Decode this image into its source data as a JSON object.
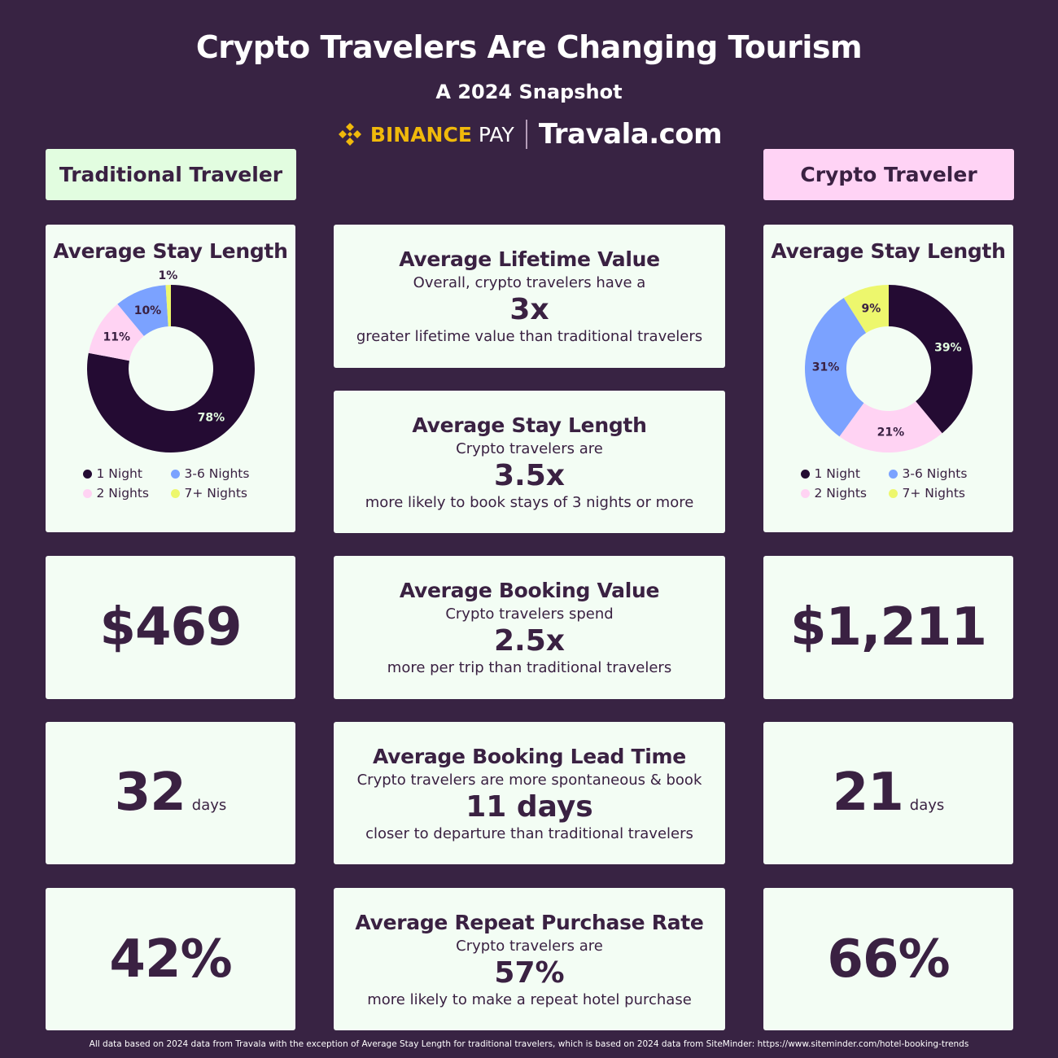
{
  "header": {
    "title": "Crypto Travelers Are Changing Tourism",
    "subtitle": "A 2024 Snapshot",
    "logo_binance": "BINANCE",
    "logo_pay": "PAY",
    "logo_travala": "Travala.com"
  },
  "columns": {
    "traditional": "Traditional Traveler",
    "crypto": "Crypto Traveler"
  },
  "colors": {
    "background": "#382343",
    "card": "#f3fdf4",
    "night1": "#240b33",
    "night2": "#ffd3f3",
    "night3_6": "#7ba2ff",
    "night7": "#edf76d",
    "binance": "#f0b90b"
  },
  "chart_data": [
    {
      "type": "pie",
      "variant": "donut",
      "title": "Average Stay Length",
      "group": "Traditional Traveler",
      "categories": [
        "1 Night",
        "2 Nights",
        "3-6 Nights",
        "7+ Nights"
      ],
      "values": [
        78,
        11,
        10,
        1
      ],
      "labels": [
        "78%",
        "11%",
        "10%",
        "1%"
      ],
      "legend": [
        "1 Night",
        "3-6 Nights",
        "2 Nights",
        "7+ Nights"
      ]
    },
    {
      "type": "pie",
      "variant": "donut",
      "title": "Average Stay Length",
      "group": "Crypto Traveler",
      "categories": [
        "1 Night",
        "2 Nights",
        "3-6 Nights",
        "7+ Nights"
      ],
      "values": [
        39,
        21,
        31,
        9
      ],
      "labels": [
        "39%",
        "21%",
        "31%",
        "9%"
      ],
      "legend": [
        "1 Night",
        "3-6 Nights",
        "2 Nights",
        "7+ Nights"
      ]
    }
  ],
  "middle": [
    {
      "title": "Average Lifetime Value",
      "pre": "Overall, crypto travelers have a",
      "big": "3x",
      "post": "greater lifetime value than traditional travelers"
    },
    {
      "title": "Average Stay Length",
      "pre": "Crypto travelers are",
      "big": "3.5x",
      "post": "more likely to book stays of 3 nights or more"
    },
    {
      "title": "Average Booking Value",
      "pre": "Crypto travelers spend",
      "big": "2.5x",
      "post": "more per trip than traditional travelers"
    },
    {
      "title": "Average Booking Lead Time",
      "pre": "Crypto travelers are more spontaneous & book",
      "big": "11 days",
      "post": "closer to departure than traditional travelers"
    },
    {
      "title": "Average Repeat Purchase Rate",
      "pre": "Crypto travelers are",
      "big": "57%",
      "post": "more likely to make a repeat hotel purchase"
    }
  ],
  "traditional": {
    "booking_value": "$469",
    "lead_time": "32",
    "lead_unit": "days",
    "repeat_rate": "42%"
  },
  "crypto": {
    "booking_value": "$1,211",
    "lead_time": "21",
    "lead_unit": "days",
    "repeat_rate": "66%"
  },
  "footer": "All data based on 2024 data from Travala with the exception of Average Stay Length for traditional travelers, which is based on 2024 data from SiteMinder: https://www.siteminder.com/hotel-booking-trends"
}
